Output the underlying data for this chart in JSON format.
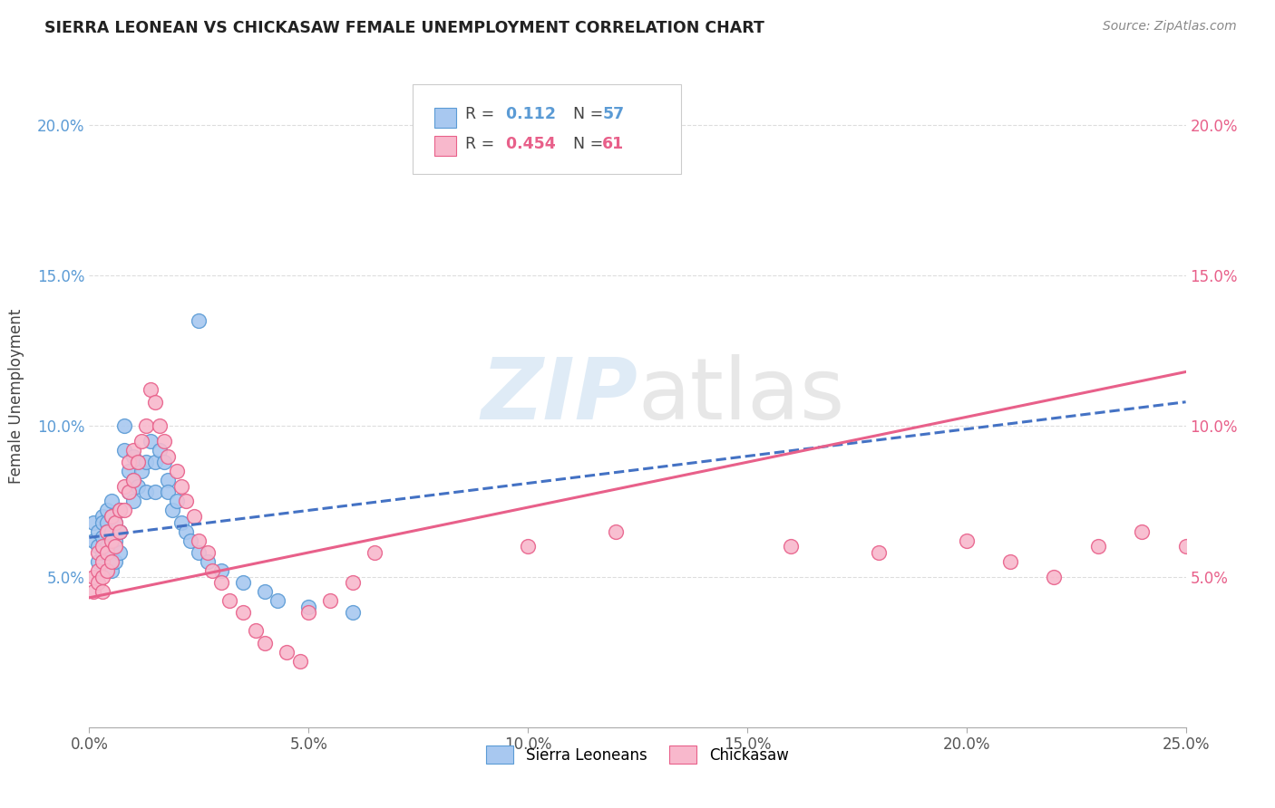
{
  "title": "SIERRA LEONEAN VS CHICKASAW FEMALE UNEMPLOYMENT CORRELATION CHART",
  "source": "Source: ZipAtlas.com",
  "ylabel": "Female Unemployment",
  "xlim": [
    0.0,
    0.25
  ],
  "ylim": [
    0.0,
    0.22
  ],
  "xticks": [
    0.0,
    0.05,
    0.1,
    0.15,
    0.2,
    0.25
  ],
  "xtick_labels": [
    "0.0%",
    "5.0%",
    "10.0%",
    "15.0%",
    "20.0%",
    "25.0%"
  ],
  "yticks": [
    0.05,
    0.1,
    0.15,
    0.2
  ],
  "ytick_labels": [
    "5.0%",
    "10.0%",
    "15.0%",
    "20.0%"
  ],
  "blue_color": "#a8c8f0",
  "pink_color": "#f8b8cc",
  "blue_edge_color": "#5b9bd5",
  "pink_edge_color": "#e8608a",
  "blue_line_color": "#4472c4",
  "pink_line_color": "#e8608a",
  "R_blue": "0.112",
  "N_blue": "57",
  "R_pink": "0.454",
  "N_pink": "61",
  "blue_trend_x0": 0.0,
  "blue_trend_y0": 0.063,
  "blue_trend_x1": 0.25,
  "blue_trend_y1": 0.108,
  "pink_trend_x0": 0.0,
  "pink_trend_y0": 0.043,
  "pink_trend_x1": 0.25,
  "pink_trend_y1": 0.118,
  "sierra_x": [
    0.001,
    0.001,
    0.002,
    0.002,
    0.002,
    0.003,
    0.003,
    0.003,
    0.003,
    0.004,
    0.004,
    0.004,
    0.004,
    0.005,
    0.005,
    0.005,
    0.005,
    0.005,
    0.006,
    0.006,
    0.006,
    0.007,
    0.007,
    0.007,
    0.008,
    0.008,
    0.009,
    0.009,
    0.01,
    0.01,
    0.01,
    0.011,
    0.011,
    0.012,
    0.013,
    0.013,
    0.014,
    0.015,
    0.015,
    0.016,
    0.017,
    0.018,
    0.018,
    0.019,
    0.02,
    0.021,
    0.022,
    0.023,
    0.025,
    0.027,
    0.03,
    0.035,
    0.04,
    0.043,
    0.05,
    0.06,
    0.025
  ],
  "sierra_y": [
    0.068,
    0.062,
    0.065,
    0.06,
    0.055,
    0.07,
    0.068,
    0.063,
    0.058,
    0.072,
    0.068,
    0.065,
    0.06,
    0.075,
    0.07,
    0.065,
    0.058,
    0.052,
    0.068,
    0.062,
    0.055,
    0.072,
    0.065,
    0.058,
    0.1,
    0.092,
    0.085,
    0.078,
    0.09,
    0.082,
    0.075,
    0.088,
    0.08,
    0.085,
    0.088,
    0.078,
    0.095,
    0.088,
    0.078,
    0.092,
    0.088,
    0.082,
    0.078,
    0.072,
    0.075,
    0.068,
    0.065,
    0.062,
    0.058,
    0.055,
    0.052,
    0.048,
    0.045,
    0.042,
    0.04,
    0.038,
    0.135
  ],
  "chickasaw_x": [
    0.001,
    0.001,
    0.002,
    0.002,
    0.002,
    0.003,
    0.003,
    0.003,
    0.003,
    0.004,
    0.004,
    0.004,
    0.005,
    0.005,
    0.005,
    0.006,
    0.006,
    0.007,
    0.007,
    0.008,
    0.008,
    0.009,
    0.009,
    0.01,
    0.01,
    0.011,
    0.012,
    0.013,
    0.014,
    0.015,
    0.016,
    0.017,
    0.018,
    0.02,
    0.021,
    0.022,
    0.024,
    0.025,
    0.027,
    0.028,
    0.03,
    0.032,
    0.035,
    0.038,
    0.04,
    0.045,
    0.048,
    0.05,
    0.055,
    0.06,
    0.065,
    0.1,
    0.12,
    0.16,
    0.18,
    0.2,
    0.21,
    0.22,
    0.23,
    0.24,
    0.25
  ],
  "chickasaw_y": [
    0.05,
    0.045,
    0.058,
    0.052,
    0.048,
    0.06,
    0.055,
    0.05,
    0.045,
    0.065,
    0.058,
    0.052,
    0.07,
    0.062,
    0.055,
    0.068,
    0.06,
    0.072,
    0.065,
    0.08,
    0.072,
    0.088,
    0.078,
    0.092,
    0.082,
    0.088,
    0.095,
    0.1,
    0.112,
    0.108,
    0.1,
    0.095,
    0.09,
    0.085,
    0.08,
    0.075,
    0.07,
    0.062,
    0.058,
    0.052,
    0.048,
    0.042,
    0.038,
    0.032,
    0.028,
    0.025,
    0.022,
    0.038,
    0.042,
    0.048,
    0.058,
    0.06,
    0.065,
    0.06,
    0.058,
    0.062,
    0.055,
    0.05,
    0.06,
    0.065,
    0.06
  ]
}
